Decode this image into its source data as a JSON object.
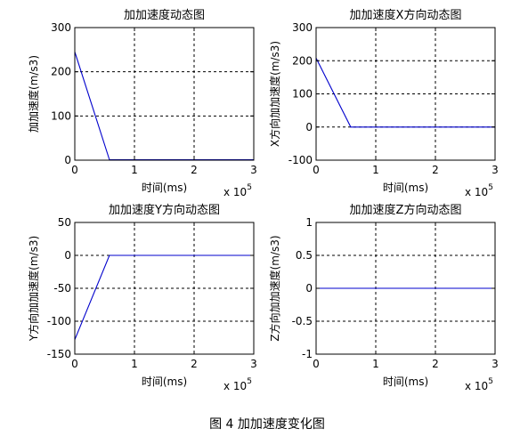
{
  "figure_caption": "图 4  加加速度变化图",
  "chart_data": [
    {
      "type": "line",
      "title": "加加速度动态图",
      "xlabel": "时间(ms)",
      "ylabel": "加加速度(m/s3)",
      "x_exponent_label": "x 10",
      "x_exponent_power": "5",
      "xlim": [
        0,
        3
      ],
      "ylim": [
        0,
        300
      ],
      "xticks": [
        0,
        1,
        2,
        3
      ],
      "yticks": [
        0,
        100,
        200,
        300
      ],
      "xtick_labels": [
        "0",
        "1",
        "2",
        "3"
      ],
      "ytick_labels": [
        "0",
        "100",
        "200",
        "300"
      ],
      "grid": true,
      "series": [
        {
          "color": "#0000cc",
          "x": [
            0,
            0.58,
            3
          ],
          "y": [
            245,
            1,
            1
          ]
        }
      ]
    },
    {
      "type": "line",
      "title": "加加速度X方向动态图",
      "xlabel": "时间(ms)",
      "ylabel": "X方向加加速度(m/s3)",
      "x_exponent_label": "x 10",
      "x_exponent_power": "5",
      "xlim": [
        0,
        3
      ],
      "ylim": [
        -100,
        300
      ],
      "xticks": [
        0,
        1,
        2,
        3
      ],
      "yticks": [
        -100,
        0,
        100,
        200,
        300
      ],
      "xtick_labels": [
        "0",
        "1",
        "2",
        "3"
      ],
      "ytick_labels": [
        "-100",
        "0",
        "100",
        "200",
        "300"
      ],
      "grid": true,
      "series": [
        {
          "color": "#0000cc",
          "x": [
            0,
            0.58,
            3
          ],
          "y": [
            208,
            0,
            0
          ]
        }
      ]
    },
    {
      "type": "line",
      "title": "加加速度Y方向动态图",
      "xlabel": "时间(ms)",
      "ylabel": "Y方向加加速度(m/s3)",
      "x_exponent_label": "x 10",
      "x_exponent_power": "5",
      "xlim": [
        0,
        3
      ],
      "ylim": [
        -150,
        50
      ],
      "xticks": [
        0,
        1,
        2,
        3
      ],
      "yticks": [
        -150,
        -100,
        -50,
        0,
        50
      ],
      "xtick_labels": [
        "0",
        "1",
        "2",
        "3"
      ],
      "ytick_labels": [
        "-150",
        "-100",
        "-50",
        "0",
        "50"
      ],
      "grid": true,
      "series": [
        {
          "color": "#0000cc",
          "x": [
            0,
            0.58,
            3
          ],
          "y": [
            -128,
            0,
            0
          ]
        }
      ]
    },
    {
      "type": "line",
      "title": "加加速度Z方向动态图",
      "xlabel": "时间(ms)",
      "ylabel": "Z方向加加速度(m/s3)",
      "x_exponent_label": "x 10",
      "x_exponent_power": "5",
      "xlim": [
        0,
        3
      ],
      "ylim": [
        -1,
        1
      ],
      "xticks": [
        0,
        1,
        2,
        3
      ],
      "yticks": [
        -1,
        -0.5,
        0,
        0.5,
        1
      ],
      "xtick_labels": [
        "0",
        "1",
        "2",
        "3"
      ],
      "ytick_labels": [
        "-1",
        "-0.5",
        "0",
        "0.5",
        "1"
      ],
      "grid": true,
      "series": [
        {
          "color": "#0000cc",
          "x": [
            0,
            3
          ],
          "y": [
            0,
            0
          ]
        }
      ]
    }
  ]
}
